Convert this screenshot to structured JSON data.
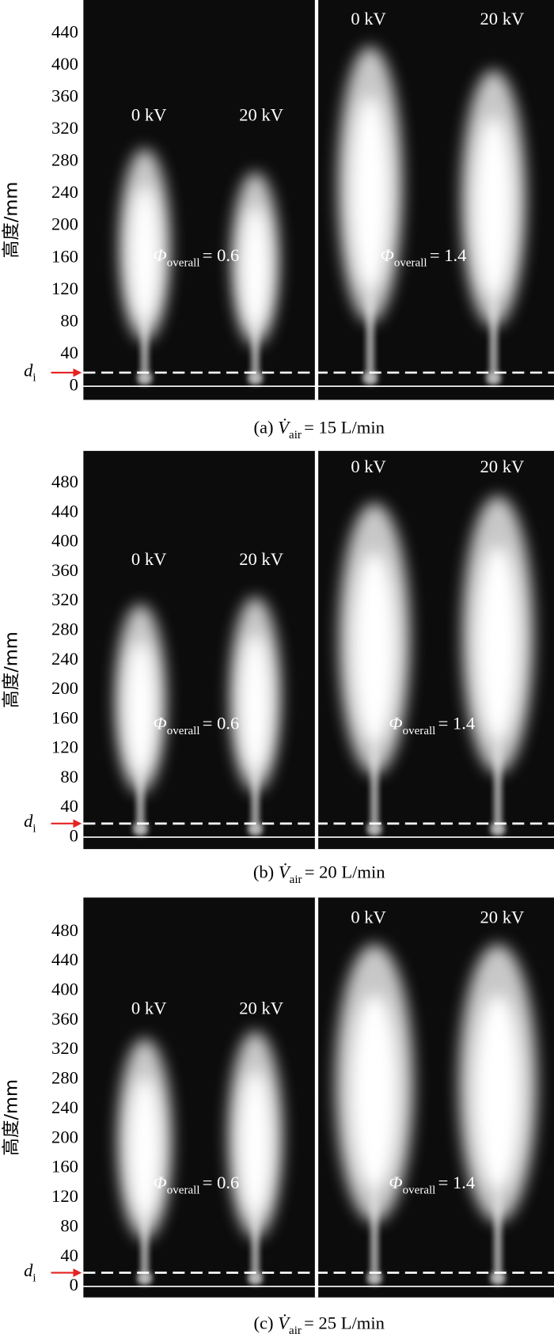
{
  "panels": [
    {
      "caption": {
        "prefix": "(a)",
        "symbol": "V̇",
        "sub": "air",
        "rest": "= 15 L/min"
      },
      "axis_label": "高度/mm",
      "marker_label": {
        "symbol": "d",
        "sub": "i"
      },
      "yticks": [
        0,
        40,
        80,
        120,
        160,
        200,
        240,
        280,
        320,
        360,
        400,
        440
      ],
      "groups": [
        {
          "labels": [
            "0 kV",
            "20 kV"
          ],
          "phi": {
            "symbol": "Φ",
            "sub": "overall",
            "rest": "= 0.6"
          }
        },
        {
          "labels": [
            "0 kV",
            "20 kV"
          ],
          "phi": {
            "symbol": "Φ",
            "sub": "overall",
            "rest": "= 1.4"
          }
        }
      ]
    },
    {
      "caption": {
        "prefix": "(b)",
        "symbol": "V̇",
        "sub": "air",
        "rest": "= 20 L/min"
      },
      "axis_label": "高度/mm",
      "marker_label": {
        "symbol": "d",
        "sub": "i"
      },
      "yticks": [
        0,
        40,
        80,
        120,
        160,
        200,
        240,
        280,
        320,
        360,
        400,
        440,
        480
      ],
      "groups": [
        {
          "labels": [
            "0 kV",
            "20 kV"
          ],
          "phi": {
            "symbol": "Φ",
            "sub": "overall",
            "rest": "= 0.6"
          }
        },
        {
          "labels": [
            "0 kV",
            "20 kV"
          ],
          "phi": {
            "symbol": "Φ",
            "sub": "overall",
            "rest": "= 1.4"
          }
        }
      ]
    },
    {
      "caption": {
        "prefix": "(c)",
        "symbol": "V̇",
        "sub": "air",
        "rest": "= 25 L/min"
      },
      "axis_label": "高度/mm",
      "marker_label": {
        "symbol": "d",
        "sub": "i"
      },
      "yticks": [
        0,
        40,
        80,
        120,
        160,
        200,
        240,
        280,
        320,
        360,
        400,
        440,
        480
      ],
      "groups": [
        {
          "labels": [
            "0 kV",
            "20 kV"
          ],
          "phi": {
            "symbol": "Φ",
            "sub": "overall",
            "rest": "= 0.6"
          }
        },
        {
          "labels": [
            "0 kV",
            "20 kV"
          ],
          "phi": {
            "symbol": "Φ",
            "sub": "overall",
            "rest": "= 1.4"
          }
        }
      ]
    }
  ]
}
